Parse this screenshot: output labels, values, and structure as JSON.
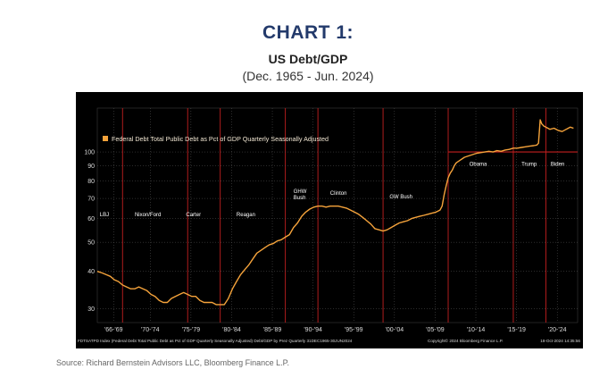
{
  "header": {
    "title": "CHART 1:",
    "subtitle": "US Debt/GDP",
    "date_range": "(Dec. 1965 - Jun. 2024)"
  },
  "source": "Source: Richard Bernstein Advisors LLC, Bloomberg Finance L.P.",
  "colors": {
    "background": "#000000",
    "series": "#f5a33b",
    "divider": "#c21f1f",
    "title": "#233a6b"
  },
  "chart_data": {
    "type": "line",
    "legend": "Federal Debt Total Public Debt as Pct of GDP Quarterly Seasonally Adjusted",
    "y_scale": "log",
    "ylim": [
      27,
      140
    ],
    "y_ticks": [
      30,
      40,
      50,
      60,
      70,
      80,
      90,
      100
    ],
    "x_range": [
      1965.9,
      2024.9
    ],
    "x_ticks": [
      {
        "label": "'66-'69",
        "x": 1967.9
      },
      {
        "label": "'70-'74",
        "x": 1972.4
      },
      {
        "label": "'75-'79",
        "x": 1977.4
      },
      {
        "label": "'80-'84",
        "x": 1982.4
      },
      {
        "label": "'85-'89",
        "x": 1987.4
      },
      {
        "label": "'90-'94",
        "x": 1992.4
      },
      {
        "label": "'95-'99",
        "x": 1997.4
      },
      {
        "label": "'00-'04",
        "x": 2002.4
      },
      {
        "label": "'05-'09",
        "x": 2007.4
      },
      {
        "label": "'10-'14",
        "x": 2012.4
      },
      {
        "label": "'15-'19",
        "x": 2017.4
      },
      {
        "label": "'20-'24",
        "x": 2022.4
      }
    ],
    "terms": [
      {
        "label": "LBJ",
        "x": 1966.2,
        "y": 61
      },
      {
        "label": "Nixon/Ford",
        "x": 1970.5,
        "y": 61
      },
      {
        "label": "Carter",
        "x": 1976.8,
        "y": 61
      },
      {
        "label": "Reagan",
        "x": 1983.0,
        "y": 61
      },
      {
        "label": "GHW Bush",
        "x": 1990.0,
        "y": 73
      },
      {
        "label": "Clinton",
        "x": 1994.5,
        "y": 72
      },
      {
        "label": "GW Bush",
        "x": 2001.8,
        "y": 70
      },
      {
        "label": "Obama",
        "x": 2011.6,
        "y": 90
      },
      {
        "label": "Trump",
        "x": 2018.0,
        "y": 90
      },
      {
        "label": "Biden",
        "x": 2021.6,
        "y": 90
      }
    ],
    "dividers": [
      1969.0,
      1977.0,
      1981.0,
      1989.0,
      1993.0,
      2001.0,
      2009.0,
      2017.0,
      2021.0
    ],
    "reference_level": 100,
    "reference_start": 2009.0,
    "series": [
      {
        "x": [
          1965.9,
          1966.5,
          1967,
          1967.5,
          1968,
          1968.5,
          1969,
          1969.5,
          1970,
          1970.5,
          1971,
          1971.5,
          1972,
          1972.5,
          1973,
          1973.5,
          1974,
          1974.5,
          1975,
          1975.5,
          1976,
          1976.5,
          1977,
          1977.5,
          1978,
          1978.5,
          1979,
          1979.5,
          1980,
          1980.5,
          1981,
          1981.5,
          1982,
          1982.5,
          1983,
          1983.5,
          1984,
          1984.5,
          1985,
          1985.5,
          1986,
          1986.5,
          1987,
          1987.5,
          1988,
          1988.5,
          1989,
          1989.5,
          1990,
          1990.5,
          1991,
          1991.5,
          1992,
          1992.5,
          1993,
          1993.5,
          1994,
          1994.5,
          1995,
          1995.5,
          1996,
          1996.5,
          1997,
          1997.5,
          1998,
          1998.5,
          1999,
          1999.5,
          2000,
          2000.5,
          2001,
          2001.5,
          2002,
          2002.5,
          2003,
          2003.5,
          2004,
          2004.5,
          2005,
          2005.5,
          2006,
          2006.5,
          2007,
          2007.5,
          2008,
          2008.25,
          2008.5,
          2008.75,
          2009,
          2009.25,
          2009.5,
          2009.75,
          2010,
          2010.5,
          2011,
          2011.5,
          2012,
          2012.5,
          2013,
          2013.5,
          2014,
          2014.5,
          2015,
          2015.5,
          2016,
          2016.5,
          2017,
          2017.5,
          2018,
          2018.5,
          2019,
          2019.5,
          2019.9,
          2020.1,
          2020.3,
          2020.5,
          2020.75,
          2021,
          2021.5,
          2022,
          2022.5,
          2023,
          2023.5,
          2024,
          2024.4
        ],
        "values": [
          40,
          39.5,
          39,
          38.5,
          37.5,
          37,
          36,
          35.5,
          35,
          35,
          35.5,
          35,
          34.5,
          33.5,
          33,
          32,
          31.5,
          31.5,
          32.5,
          33,
          33.5,
          34,
          33.5,
          33,
          33,
          32,
          31.5,
          31.5,
          31.5,
          31,
          31,
          31,
          32.5,
          35,
          37,
          39,
          40.5,
          42,
          44,
          46,
          47,
          48,
          49,
          49.5,
          50.5,
          51,
          52,
          53,
          56,
          58,
          61,
          63,
          64.5,
          65.5,
          66,
          66,
          65.5,
          66,
          66,
          66,
          65.5,
          65,
          64,
          63,
          62,
          60.5,
          59,
          57.5,
          55.5,
          55,
          54.5,
          55,
          56,
          57,
          58,
          58.5,
          59,
          60,
          60.5,
          61,
          61.5,
          62,
          62.5,
          63,
          64,
          66,
          72,
          77,
          82,
          85,
          87,
          90,
          92,
          94,
          96,
          97,
          98,
          99,
          99.5,
          100,
          100.5,
          100,
          101,
          100.5,
          101.5,
          102,
          103,
          103,
          103.5,
          104,
          104.5,
          105,
          105.5,
          107,
          128,
          124,
          122,
          121,
          119,
          120,
          118,
          117,
          119,
          121,
          120
        ]
      }
    ]
  },
  "footer": {
    "left": "FDTSATPD Index (Federal Debt Total Public Debt as Pct of GDP Quarterly Seasonally Adjusted) Debt/GDP by Prez Quarterly 31DEC1965-30JUN2024",
    "center": "Copyright© 2024 Bloomberg Finance L.P.",
    "right": "18-Oct-2024 14:35:56"
  }
}
